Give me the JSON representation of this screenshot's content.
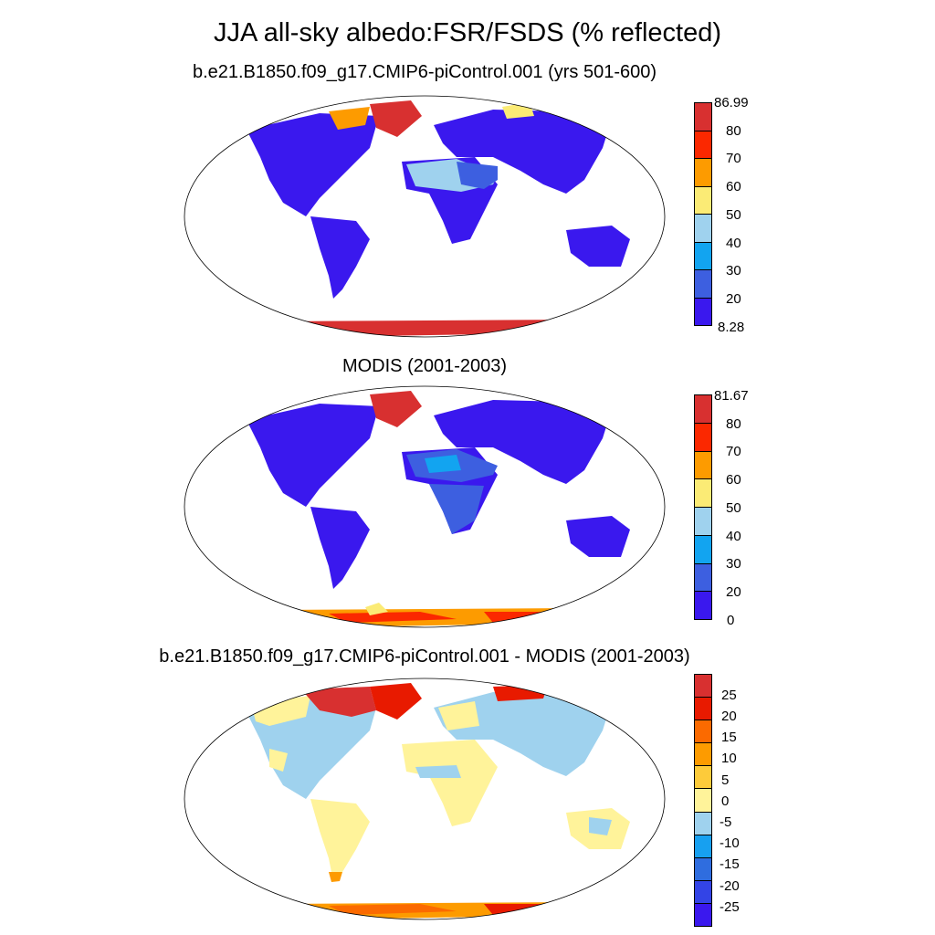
{
  "title": "JJA all-sky albedo:FSR/FSDS (% reflected)",
  "colors": {
    "land_ocean_outline": "#000000",
    "absolute_scale": [
      "#3a18ee",
      "#3d5fe0",
      "#12a4f0",
      "#9fd2ee",
      "#fbeb75",
      "#fd9b00",
      "#fb2800",
      "#d83030"
    ],
    "difference_scale": [
      "#3a18ee",
      "#3344e6",
      "#2f6ddf",
      "#17a0f0",
      "#9fd2ee",
      "#fff39a",
      "#fdcb3a",
      "#fd9b00",
      "#fb6a00",
      "#e81a00",
      "#d83030"
    ]
  },
  "panels": [
    {
      "id": "model",
      "title": "b.e21.B1850.f09_g17.CMIP6-piControl.001 (yrs 501-600)",
      "colorbar": {
        "min_label": "8.28",
        "max_label": "86.99",
        "ticks": [
          "20",
          "30",
          "40",
          "50",
          "60",
          "70",
          "80"
        ]
      }
    },
    {
      "id": "obs",
      "title": "MODIS (2001-2003)",
      "colorbar": {
        "min_label": "0",
        "max_label": "81.67",
        "ticks": [
          "20",
          "30",
          "40",
          "50",
          "60",
          "70",
          "80"
        ]
      }
    },
    {
      "id": "diff",
      "title": "b.e21.B1850.f09_g17.CMIP6-piControl.001 - MODIS (2001-2003)",
      "colorbar": {
        "ticks": [
          "-25",
          "-20",
          "-15",
          "-10",
          "-5",
          "0",
          "5",
          "10",
          "15",
          "20",
          "25"
        ]
      }
    }
  ]
}
